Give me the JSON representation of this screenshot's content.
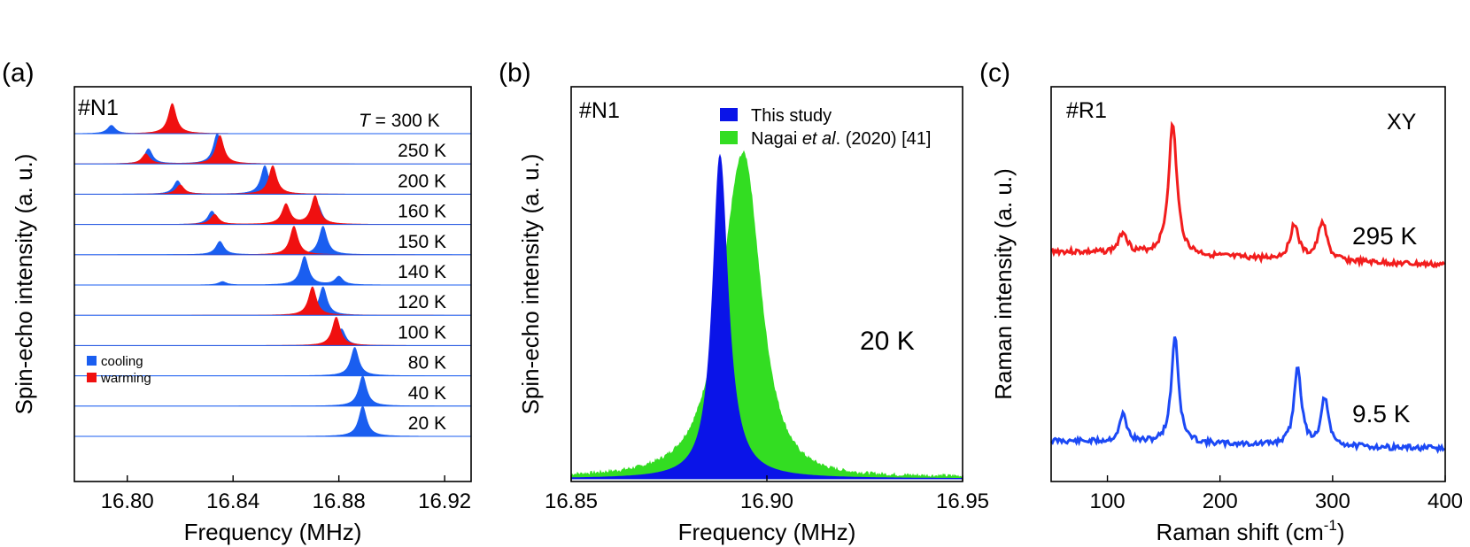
{
  "panels": {
    "a": {
      "label": "(a)"
    },
    "b": {
      "label": "(b)"
    },
    "c": {
      "label": "(c)"
    }
  },
  "colors": {
    "cooling": "#1a5ef0",
    "warming": "#f01010",
    "nagai": "#33dd22",
    "study": "#0a14e8",
    "raman_hot": "#f21d1d",
    "raman_cold": "#1c49f5"
  },
  "chart_data": [
    {
      "panel": "a",
      "type": "area",
      "sample": "#N1",
      "xlabel": "Frequency (MHz)",
      "ylabel": "Spin-echo intensity (a. u.)",
      "xlim": [
        16.78,
        16.93
      ],
      "xticks": [
        "16.80",
        "16.84",
        "16.88",
        "16.92"
      ],
      "legend": [
        {
          "name": "cooling",
          "color": "#1a5ef0"
        },
        {
          "name": "warming",
          "color": "#f01010"
        }
      ],
      "legend_placement": "lower-left",
      "t_prefix": "T",
      "t_prefix_suffix": " = 300 K",
      "traces": [
        {
          "label": "300 K",
          "cooling_peaks": [
            [
              16.794,
              0.25
            ]
          ],
          "warming_peaks": [
            [
              16.817,
              0.9
            ]
          ]
        },
        {
          "label": "250 K",
          "cooling_peaks": [
            [
              16.808,
              0.45
            ],
            [
              16.834,
              0.9
            ]
          ],
          "warming_peaks": [
            [
              16.807,
              0.3
            ],
            [
              16.835,
              0.85
            ]
          ]
        },
        {
          "label": "200 K",
          "cooling_peaks": [
            [
              16.819,
              0.4
            ],
            [
              16.852,
              0.85
            ]
          ],
          "warming_peaks": [
            [
              16.82,
              0.28
            ],
            [
              16.855,
              0.85
            ]
          ]
        },
        {
          "label": "160 K",
          "cooling_peaks": [
            [
              16.832,
              0.4
            ],
            [
              16.872,
              0.6
            ]
          ],
          "warming_peaks": [
            [
              16.833,
              0.3
            ],
            [
              16.86,
              0.6
            ],
            [
              16.871,
              0.85
            ]
          ]
        },
        {
          "label": "150 K",
          "cooling_peaks": [
            [
              16.835,
              0.4
            ],
            [
              16.874,
              0.85
            ]
          ],
          "warming_peaks": [
            [
              16.863,
              0.85
            ]
          ]
        },
        {
          "label": "140 K",
          "cooling_peaks": [
            [
              16.836,
              0.1
            ],
            [
              16.867,
              0.85
            ],
            [
              16.88,
              0.25
            ]
          ],
          "warming_peaks": []
        },
        {
          "label": "120 K",
          "cooling_peaks": [
            [
              16.874,
              0.85
            ]
          ],
          "warming_peaks": [
            [
              16.87,
              0.85
            ]
          ]
        },
        {
          "label": "100 K",
          "cooling_peaks": [
            [
              16.881,
              0.5
            ]
          ],
          "warming_peaks": [
            [
              16.879,
              0.85
            ]
          ]
        },
        {
          "label": "80 K",
          "cooling_peaks": [
            [
              16.886,
              0.85
            ]
          ],
          "warming_peaks": []
        },
        {
          "label": "40 K",
          "cooling_peaks": [
            [
              16.889,
              0.9
            ]
          ],
          "warming_peaks": []
        },
        {
          "label": "20 K",
          "cooling_peaks": [
            [
              16.889,
              0.9
            ]
          ],
          "warming_peaks": []
        }
      ]
    },
    {
      "panel": "b",
      "type": "area",
      "sample": "#N1",
      "annotation": "20 K",
      "xlabel": "Frequency (MHz)",
      "ylabel": "Spin-echo intensity (a. u.)",
      "xlim": [
        16.85,
        16.95
      ],
      "xticks": [
        "16.85",
        "16.90",
        "16.95"
      ],
      "legend_placement": "top-center",
      "series": [
        {
          "name": "This study",
          "color": "#0a14e8",
          "center": 16.888,
          "hwhm": 0.0025,
          "peak": 1.0
        },
        {
          "name": "Nagai et al. (2020) [41]",
          "name_a": "Nagai ",
          "name_b": "et al",
          "name_c": ". (2020) [41]",
          "color": "#33dd22",
          "center": 16.894,
          "hwhm": 0.0065,
          "peak": 1.0
        }
      ]
    },
    {
      "panel": "c",
      "type": "line",
      "sample": "#R1",
      "polarization": "XY",
      "xlabel": "Raman shift (cm",
      "xlabel_sup": "-1",
      "xlabel_end": ")",
      "ylabel": "Raman intensity (a. u.)",
      "xlim": [
        50,
        400
      ],
      "xticks": [
        "100",
        "200",
        "300",
        "400"
      ],
      "series": [
        {
          "name": "295 K",
          "color": "#f21d1d",
          "peaks": [
            [
              114,
              0.6
            ],
            [
              158,
              3.7
            ],
            [
              266,
              1.0
            ],
            [
              291,
              1.1
            ]
          ]
        },
        {
          "name": "9.5 K",
          "color": "#1c49f5",
          "peaks": [
            [
              114,
              0.7
            ],
            [
              160,
              2.7
            ],
            [
              269,
              2.0
            ],
            [
              293,
              1.2
            ]
          ]
        }
      ]
    }
  ]
}
